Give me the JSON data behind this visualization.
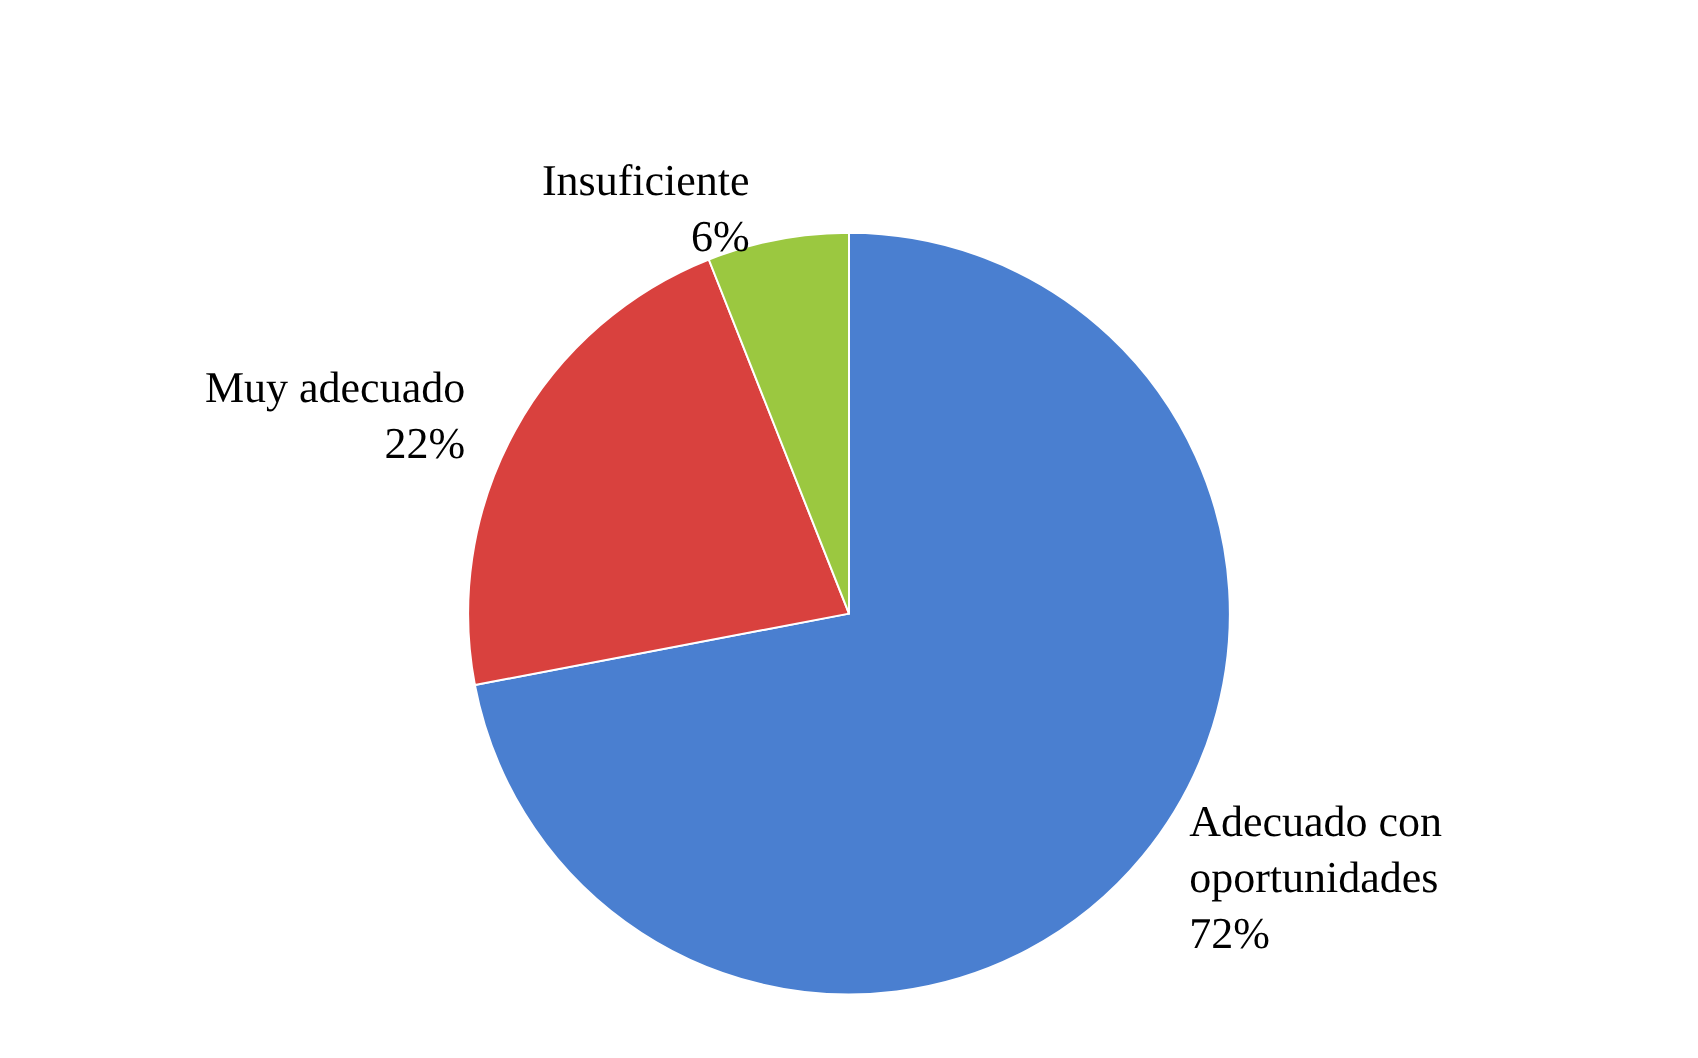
{
  "chart_data": {
    "type": "pie",
    "categories": [
      "Adecuado con oportunidades",
      "Muy adecuado",
      "Insuficiente"
    ],
    "values": [
      72,
      22,
      6
    ],
    "value_labels": [
      "72%",
      "22%",
      "6%"
    ],
    "colors": [
      "#4a7fd0",
      "#d9413e",
      "#9bc840"
    ]
  }
}
